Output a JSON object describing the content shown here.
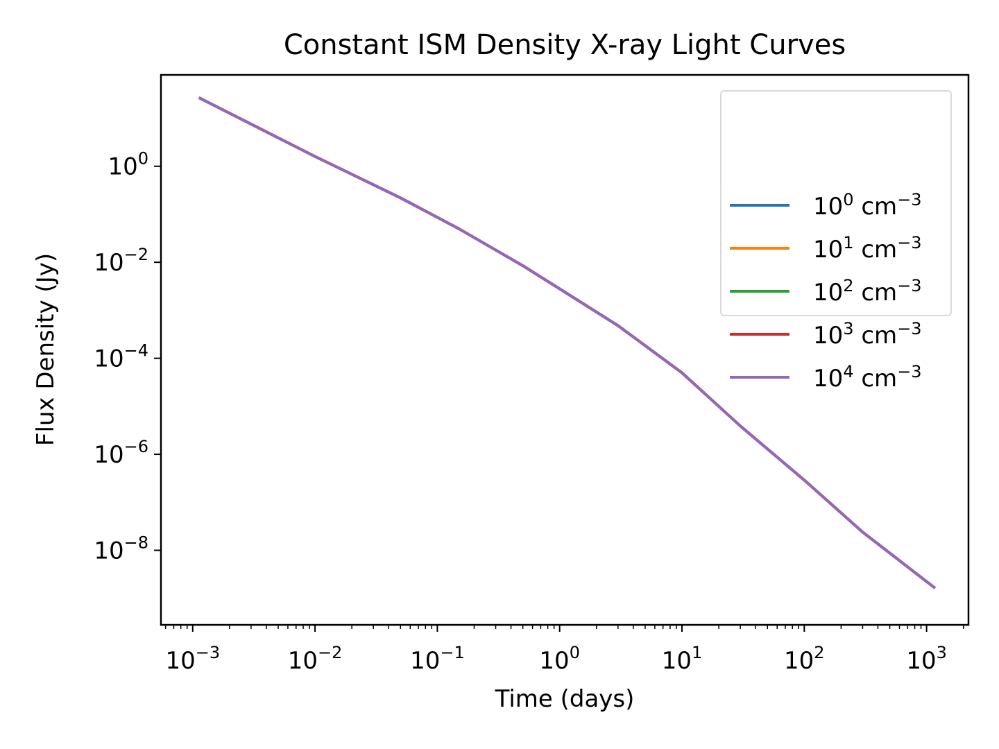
{
  "chart_data": {
    "type": "line",
    "title": "Constant ISM Density X-ray Light Curves",
    "xlabel": "Time (days)",
    "ylabel": "Flux Density (Jy)",
    "x_scale": "log",
    "y_scale": "log",
    "xlim": [
      0.00055,
      2200
    ],
    "ylim": [
      2.8e-10,
      80
    ],
    "grid": false,
    "legend_position": "top-right",
    "x_ticks": [
      {
        "base": "10",
        "exp": "−3",
        "value": 0.001
      },
      {
        "base": "10",
        "exp": "−2",
        "value": 0.01
      },
      {
        "base": "10",
        "exp": "−1",
        "value": 0.1
      },
      {
        "base": "10",
        "exp": "0",
        "value": 1
      },
      {
        "base": "10",
        "exp": "1",
        "value": 10
      },
      {
        "base": "10",
        "exp": "2",
        "value": 100
      },
      {
        "base": "10",
        "exp": "3",
        "value": 1000
      }
    ],
    "y_ticks": [
      {
        "base": "10",
        "exp": "0",
        "value": 1
      },
      {
        "base": "10",
        "exp": "−2",
        "value": 0.01
      },
      {
        "base": "10",
        "exp": "−4",
        "value": 0.0001
      },
      {
        "base": "10",
        "exp": "−6",
        "value": 1e-06
      },
      {
        "base": "10",
        "exp": "−8",
        "value": 1e-08
      }
    ],
    "series": [
      {
        "name": "10^0 cm^-3",
        "base": "10",
        "exp": "0",
        "unit": "cm",
        "unit_exp": "−3",
        "color": "#1f77b4",
        "x": [
          0.00115,
          0.01,
          0.05,
          0.15,
          0.5,
          1,
          3,
          10,
          30,
          100,
          300,
          1150
        ],
        "y": [
          26,
          1.6,
          0.22,
          0.05,
          0.0085,
          0.0028,
          0.00048,
          5e-05,
          3.9e-06,
          2.9e-07,
          2.4e-08,
          1.7e-09
        ]
      },
      {
        "name": "10^1 cm^-3",
        "base": "10",
        "exp": "1",
        "unit": "cm",
        "unit_exp": "−3",
        "color": "#ff7f0e",
        "x": [
          0.00115,
          0.01,
          0.05,
          0.15,
          0.5,
          1,
          3,
          10,
          30,
          100,
          300,
          1150
        ],
        "y": [
          26,
          1.6,
          0.22,
          0.05,
          0.0085,
          0.0028,
          0.00048,
          5e-05,
          3.9e-06,
          2.9e-07,
          2.4e-08,
          1.7e-09
        ]
      },
      {
        "name": "10^2 cm^-3",
        "base": "10",
        "exp": "2",
        "unit": "cm",
        "unit_exp": "−3",
        "color": "#2ca02c",
        "x": [
          0.00115,
          0.01,
          0.05,
          0.15,
          0.5,
          1,
          3,
          10,
          30,
          100,
          300,
          1150
        ],
        "y": [
          26,
          1.6,
          0.22,
          0.05,
          0.0085,
          0.0028,
          0.00048,
          5e-05,
          3.9e-06,
          2.9e-07,
          2.4e-08,
          1.7e-09
        ]
      },
      {
        "name": "10^3 cm^-3",
        "base": "10",
        "exp": "3",
        "unit": "cm",
        "unit_exp": "−3",
        "color": "#d62728",
        "x": [
          0.00115,
          0.01,
          0.05,
          0.15,
          0.5,
          1,
          3,
          10,
          30,
          100,
          300,
          1150
        ],
        "y": [
          26,
          1.6,
          0.22,
          0.05,
          0.0085,
          0.0028,
          0.00048,
          5e-05,
          3.9e-06,
          2.9e-07,
          2.4e-08,
          1.7e-09
        ]
      },
      {
        "name": "10^4 cm^-3",
        "base": "10",
        "exp": "4",
        "unit": "cm",
        "unit_exp": "−3",
        "color": "#9467bd",
        "x": [
          0.00115,
          0.01,
          0.05,
          0.15,
          0.5,
          1,
          3,
          10,
          30,
          100,
          300,
          1150
        ],
        "y": [
          26,
          1.6,
          0.22,
          0.05,
          0.0085,
          0.0028,
          0.00048,
          5e-05,
          3.9e-06,
          2.9e-07,
          2.4e-08,
          1.7e-09
        ]
      }
    ]
  }
}
